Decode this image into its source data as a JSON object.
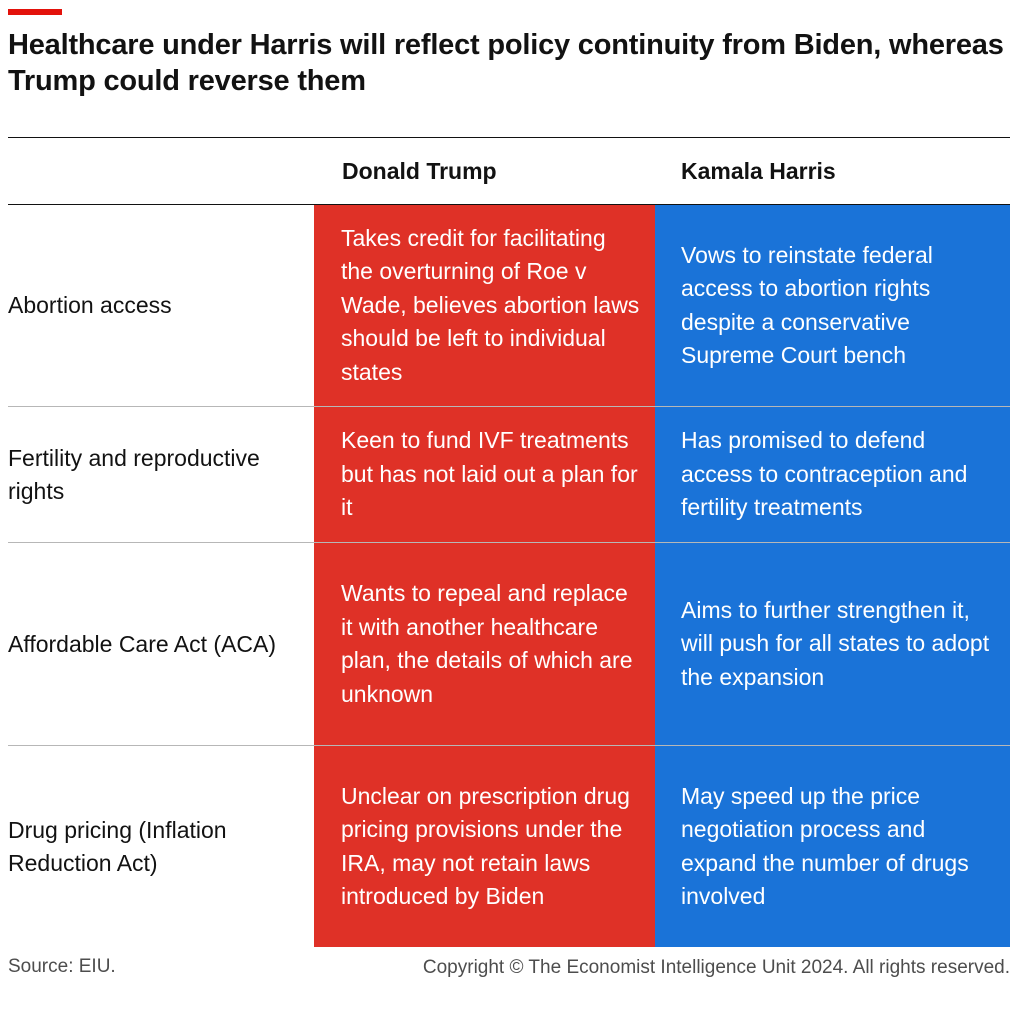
{
  "colors": {
    "accent": "#e3120b",
    "trump": "#df3127",
    "harris": "#1a73d8"
  },
  "title": "Healthcare under Harris will reflect policy continuity from Biden, whereas Trump could reverse them",
  "columns": {
    "trump": "Donald Trump",
    "harris": "Kamala Harris"
  },
  "rows": [
    {
      "label": "Abortion access",
      "trump": "Takes credit for facilitating the overturning of Roe v Wade, believes abortion laws should be left to individual states",
      "harris": "Vows to reinstate federal access to abortion rights despite a conservative Supreme Court bench"
    },
    {
      "label": "Fertility and reproductive rights",
      "trump": "Keen to fund IVF treatments but has not laid out a plan for it",
      "harris": "Has promised to defend access to contraception and fertility treatments"
    },
    {
      "label": "Affordable Care Act (ACA)",
      "trump": "Wants to repeal and replace it with another healthcare plan, the details of which are unknown",
      "harris": "Aims to further strengthen it, will push for all states to adopt the expansion"
    },
    {
      "label": "Drug pricing (Inflation Reduction Act)",
      "trump": "Unclear on prescription drug pricing provisions under the IRA, may not retain laws introduced by Biden",
      "harris": "May speed up the price negotiation process and expand the number of drugs involved"
    }
  ],
  "footer": {
    "source": "Source: EIU.",
    "copyright": "Copyright © The Economist Intelligence Unit 2024. All rights reserved."
  }
}
